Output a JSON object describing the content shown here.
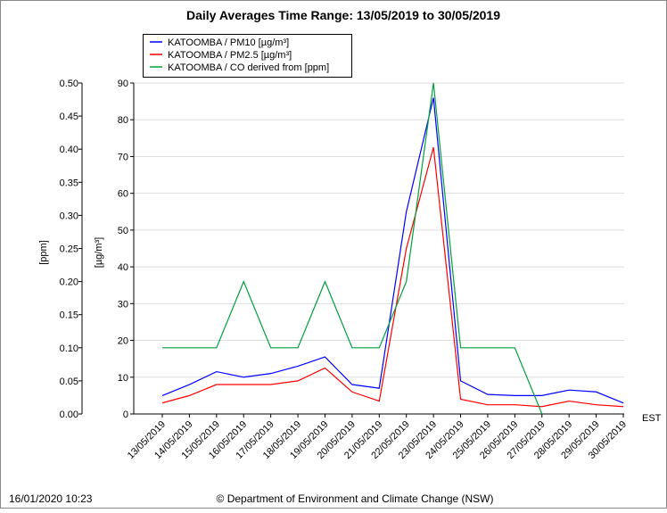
{
  "chart_data": {
    "type": "line",
    "title": "Daily Averages Time Range: 13/05/2019 to 30/05/2019",
    "categories": [
      "13/05/2019",
      "14/05/2019",
      "15/05/2019",
      "16/05/2019",
      "17/05/2019",
      "18/05/2019",
      "19/05/2019",
      "20/05/2019",
      "21/05/2019",
      "22/05/2019",
      "23/05/2019",
      "24/05/2019",
      "25/05/2019",
      "26/05/2019",
      "27/05/2019",
      "28/05/2019",
      "29/05/2019",
      "30/05/2019"
    ],
    "series": [
      {
        "name": "KATOOMBA / PM10 [µg/m³]",
        "color": "#0000ff",
        "values": [
          5,
          8,
          11.5,
          10,
          11,
          13,
          15.5,
          8,
          7,
          55,
          86,
          9,
          5.3,
          5,
          5,
          6.5,
          6,
          3
        ]
      },
      {
        "name": "KATOOMBA / PM2.5 [µg/m³]",
        "color": "#ff0000",
        "values": [
          3,
          5,
          8,
          8,
          8,
          9,
          12.5,
          6,
          3.5,
          45,
          72.5,
          4,
          2.5,
          2.5,
          2,
          3.5,
          2.5,
          2
        ]
      },
      {
        "name": "KATOOMBA / CO derived from [ppm]",
        "color": "#00a040",
        "axis": "y2",
        "values": [
          0.1,
          0.1,
          0.1,
          0.2,
          0.1,
          0.1,
          0.2,
          0.1,
          0.1,
          0.2,
          0.5,
          0.1,
          0.1,
          0.1,
          0,
          null,
          null,
          null
        ]
      }
    ],
    "ylabel": "[µg/m³]",
    "ylim": [
      0,
      90
    ],
    "yticks": [
      0,
      10,
      20,
      30,
      40,
      50,
      60,
      70,
      80,
      90
    ],
    "y2label": "[ppm]",
    "y2lim": [
      0,
      0.5
    ],
    "y2ticks": [
      {
        "value": 0,
        "label": "0.00"
      },
      0.05,
      {
        "value": 0.1,
        "label": "0.10"
      },
      0.15,
      {
        "value": 0.2,
        "label": "0.20"
      },
      0.25,
      {
        "value": 0.3,
        "label": "0.30"
      },
      0.35,
      {
        "value": 0.4,
        "label": "0.40"
      },
      0.45,
      {
        "value": 0.5,
        "label": "0.50"
      }
    ],
    "grid": true,
    "timezone": "EST",
    "timestamp": "16/01/2020 10:23",
    "footer": "© Department of Environment and Climate Change (NSW)"
  }
}
